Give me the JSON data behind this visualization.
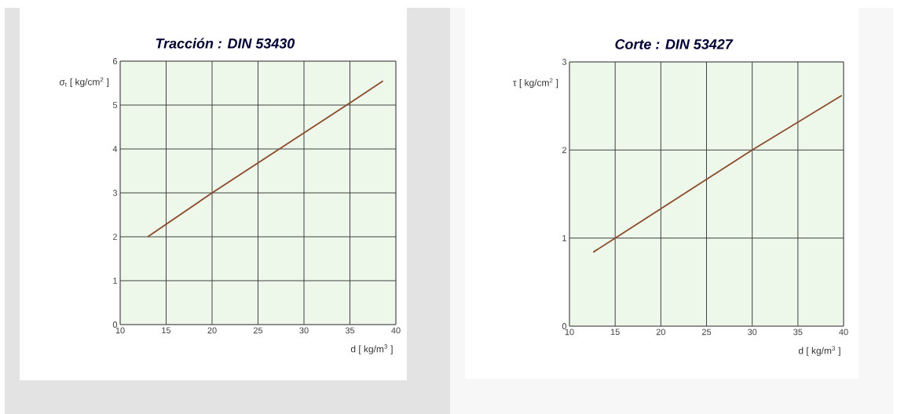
{
  "chart_data": [
    {
      "type": "line",
      "title": "Tracción : DIN 53430",
      "xlabel": "d [ kg/m$^{3}$ ]",
      "ylabel": "σ$_{t}$ [ kg/cm$^{2}$ ]",
      "x": [
        13,
        20,
        35,
        38.6
      ],
      "series": [
        {
          "color": "#8b4a2b",
          "values": [
            2,
            3,
            5.05,
            5.55
          ]
        }
      ],
      "xlim": [
        10,
        40
      ],
      "xticks": [
        10,
        15,
        20,
        25,
        30,
        35,
        40
      ],
      "ylim": [
        0,
        6
      ],
      "yticks": [
        0,
        1,
        2,
        3,
        4,
        5,
        6
      ],
      "grid": true,
      "marker": "none",
      "line_style": "solid"
    },
    {
      "type": "line",
      "title": "Corte : DIN 53427",
      "xlabel": "d [ kg/m$^{3}$ ]",
      "ylabel": "τ [ kg/cm$^{2}$ ]",
      "x": [
        12.6,
        15,
        30,
        39.8
      ],
      "series": [
        {
          "color": "#8b4a2b",
          "values": [
            0.84,
            1,
            2,
            2.62
          ]
        }
      ],
      "xlim": [
        10,
        40
      ],
      "xticks": [
        10,
        15,
        20,
        25,
        30,
        35,
        40
      ],
      "ylim": [
        0,
        3
      ],
      "yticks": [
        0,
        1,
        2,
        3
      ],
      "grid": true,
      "marker": "none",
      "line_style": "solid"
    }
  ]
}
